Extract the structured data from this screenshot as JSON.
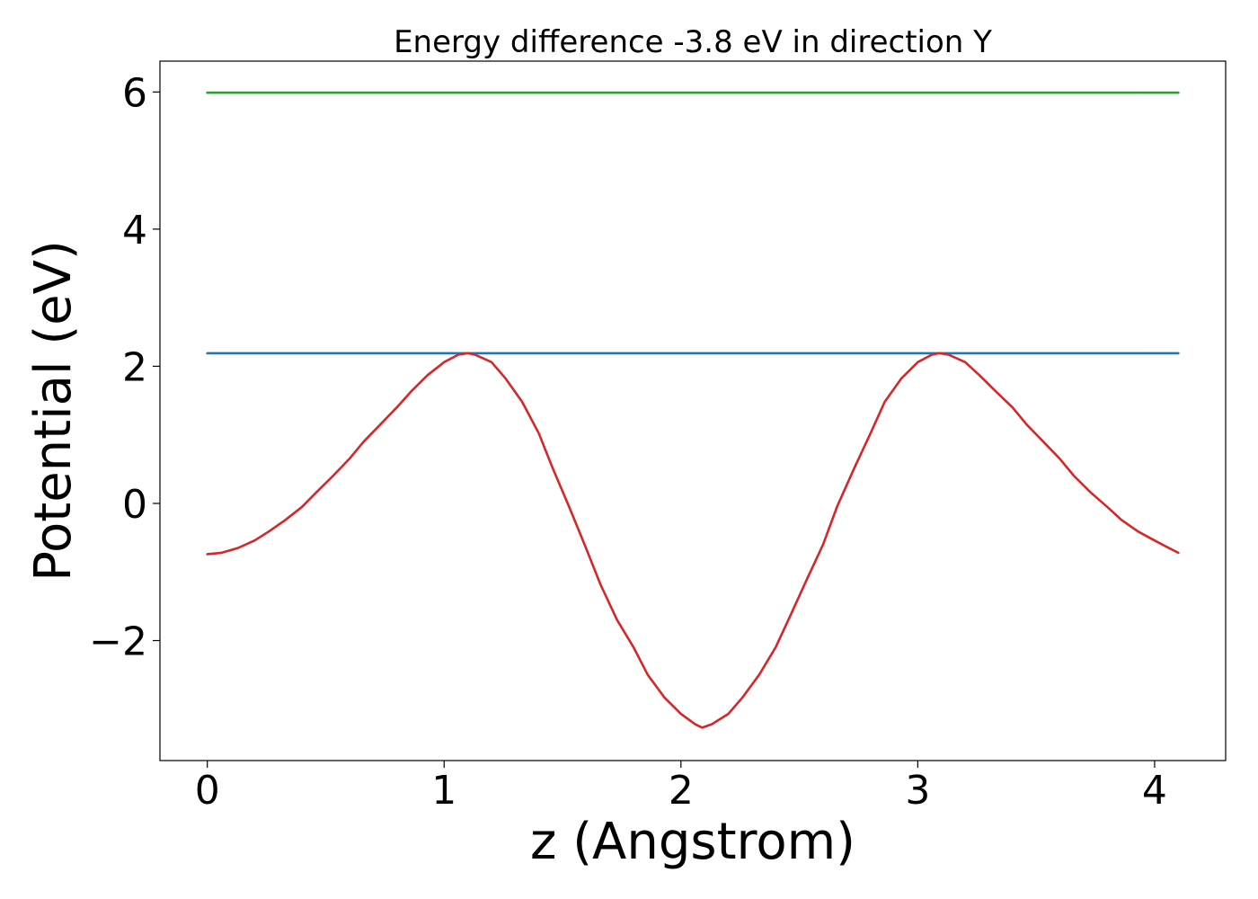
{
  "chart_data": {
    "type": "line",
    "title": "Energy difference -3.8 eV in direction Y",
    "xlabel": "z (Angstrom)",
    "ylabel": "Potential (eV)",
    "xlim": [
      -0.2,
      4.3
    ],
    "ylim": [
      -3.75,
      6.45
    ],
    "x_ticks": [
      0,
      1,
      2,
      3,
      4
    ],
    "x_tick_labels": [
      "0",
      "1",
      "2",
      "3",
      "4"
    ],
    "y_ticks": [
      -2,
      0,
      2,
      4,
      6
    ],
    "y_tick_labels": [
      "−2",
      "0",
      "2",
      "4",
      "6"
    ],
    "grid": false,
    "series": [
      {
        "color": "#2ca02c",
        "x": [
          0,
          4.1
        ],
        "y": [
          5.99,
          5.99
        ]
      },
      {
        "color": "#1f77b4",
        "x": [
          0,
          4.1
        ],
        "y": [
          2.19,
          2.19
        ]
      },
      {
        "color": "#d62728",
        "x": [
          0,
          0.06,
          0.13,
          0.2,
          0.26,
          0.33,
          0.4,
          0.46,
          0.53,
          0.6,
          0.66,
          0.73,
          0.8,
          0.86,
          0.93,
          1.0,
          1.06,
          1.1,
          1.13,
          1.2,
          1.26,
          1.33,
          1.4,
          1.46,
          1.53,
          1.6,
          1.66,
          1.73,
          1.8,
          1.86,
          1.93,
          2.0,
          2.06,
          2.09,
          2.13,
          2.2,
          2.26,
          2.33,
          2.4,
          2.46,
          2.53,
          2.6,
          2.66,
          2.73,
          2.8,
          2.86,
          2.93,
          3.0,
          3.06,
          3.09,
          3.13,
          3.2,
          3.26,
          3.33,
          3.4,
          3.46,
          3.53,
          3.6,
          3.66,
          3.73,
          3.8,
          3.86,
          3.93,
          4.0,
          4.06,
          4.1
        ],
        "y": [
          -0.74,
          -0.72,
          -0.65,
          -0.54,
          -0.41,
          -0.24,
          -0.05,
          0.16,
          0.4,
          0.65,
          0.9,
          1.15,
          1.4,
          1.63,
          1.87,
          2.06,
          2.17,
          2.19,
          2.17,
          2.06,
          1.82,
          1.48,
          1.02,
          0.5,
          -0.07,
          -0.66,
          -1.18,
          -1.7,
          -2.1,
          -2.5,
          -2.83,
          -3.07,
          -3.22,
          -3.27,
          -3.22,
          -3.07,
          -2.83,
          -2.5,
          -2.1,
          -1.65,
          -1.12,
          -0.6,
          -0.04,
          0.5,
          1.02,
          1.48,
          1.82,
          2.06,
          2.17,
          2.19,
          2.17,
          2.06,
          1.87,
          1.63,
          1.4,
          1.15,
          0.9,
          0.65,
          0.4,
          0.16,
          -0.05,
          -0.24,
          -0.41,
          -0.54,
          -0.65,
          -0.72
        ]
      }
    ]
  }
}
